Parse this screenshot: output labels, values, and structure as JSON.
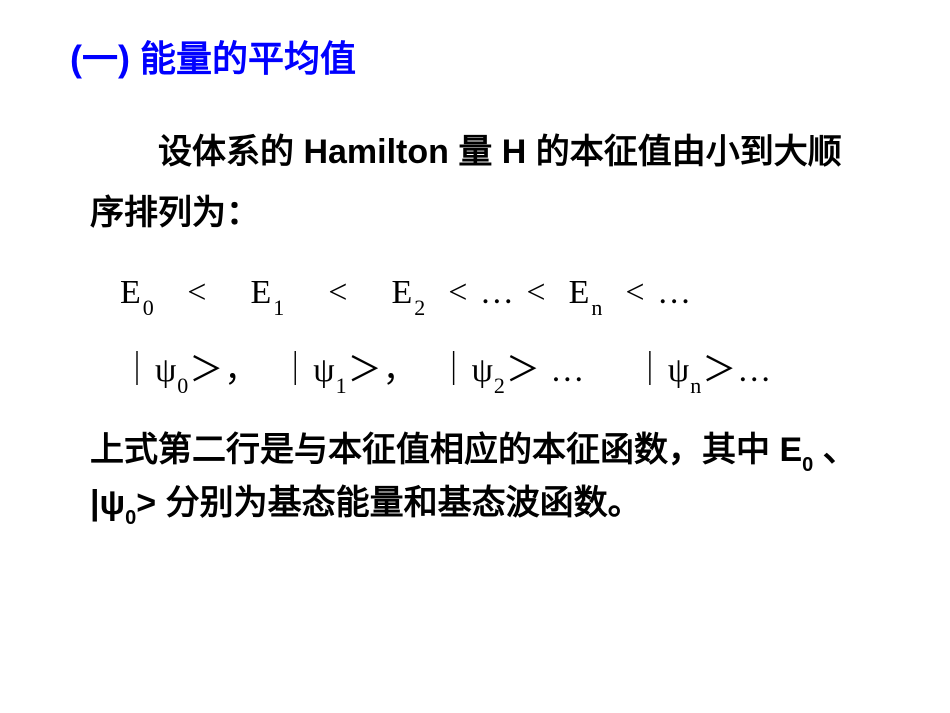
{
  "heading": "(一) 能量的平均值",
  "para1": "设体系的 Hamilton  量 H  的本征值由小到大顺序排列为：",
  "math": {
    "line1": {
      "E": "E",
      "lt": "<",
      "dots": "…",
      "s0": "0",
      "s1": "1",
      "s2": "2",
      "sn": "n"
    },
    "line2": {
      "bar": "｜",
      "psi": "ψ",
      "ket": "＞",
      "comma": "，",
      "dots": "…",
      "s0": "0",
      "s1": "1",
      "s2": "2",
      "sn": "n"
    }
  },
  "para2": {
    "t1": "上式第二行是与本征值相应的本征函数，其中  E",
    "s0a": "0",
    "t2": "  、   |ψ",
    "s0b": "0",
    "t3": ">   分别为基态能量和基态波函数。"
  },
  "colors": {
    "heading": "#0000ff",
    "body": "#000000",
    "background": "#ffffff"
  }
}
